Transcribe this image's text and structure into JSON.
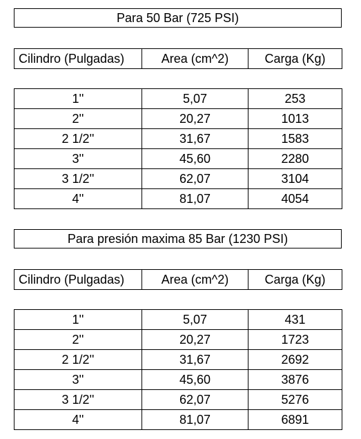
{
  "sections": [
    {
      "title": "Para 50 Bar (725 PSI)",
      "headers": [
        "Cilindro (Pulgadas)",
        "Area (cm^2)",
        "Carga (Kg)"
      ],
      "rows": [
        [
          "1''",
          "5,07",
          "253"
        ],
        [
          "2''",
          "20,27",
          "1013"
        ],
        [
          "2 1/2''",
          "31,67",
          "1583"
        ],
        [
          "3''",
          "45,60",
          "2280"
        ],
        [
          "3 1/2''",
          "62,07",
          "3104"
        ],
        [
          "4''",
          "81,07",
          "4054"
        ]
      ]
    },
    {
      "title": "Para presión maxima 85 Bar (1230 PSI)",
      "headers": [
        "Cilindro (Pulgadas)",
        "Area (cm^2)",
        "Carga (Kg)"
      ],
      "rows": [
        [
          "1''",
          "5,07",
          "431"
        ],
        [
          "2''",
          "20,27",
          "1723"
        ],
        [
          "2 1/2''",
          "31,67",
          "2692"
        ],
        [
          "3''",
          "45,60",
          "3876"
        ],
        [
          "3 1/2''",
          "62,07",
          "5276"
        ],
        [
          "4''",
          "81,07",
          "6891"
        ]
      ]
    }
  ]
}
